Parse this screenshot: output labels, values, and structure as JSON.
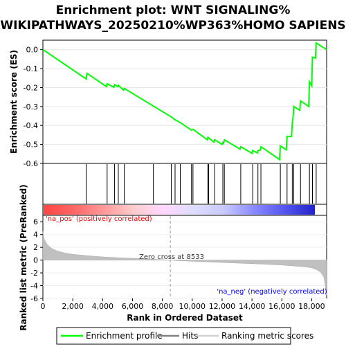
{
  "title_lines": [
    "Enrichment plot: WNT SIGNALING%",
    "WIKIPATHWAYS_20250210%WP363%HOMO SAPIENS"
  ],
  "legend": {
    "items": [
      {
        "label": "Enrichment profile",
        "color": "#00ff00"
      },
      {
        "label": "Hits",
        "color": "#808080"
      },
      {
        "label": "Ranking metric scores",
        "color": "#d0d0d0"
      }
    ]
  },
  "annotations": {
    "pos_label": "'na_pos' (positively correlated)",
    "neg_label": "'na_neg' (negatively correlated)",
    "zero_cross": "Zero cross at 8533"
  },
  "colors": {
    "profile": "#00ff00",
    "hits": "#000000",
    "metric_fill": "#c0c0c0",
    "pos_label": "#ff0000",
    "neg_label": "#0000ff"
  },
  "chart_data": [
    {
      "type": "line",
      "name": "enrichment-profile",
      "ylabel": "Enrichment score (ES)",
      "xlim": [
        0,
        19000
      ],
      "ylim": [
        -0.6,
        0.05
      ],
      "yticks": [
        0.0,
        -0.1,
        -0.2,
        -0.3,
        -0.4,
        -0.5,
        -0.6
      ],
      "ytick_labels": [
        "0.0",
        "-0.1",
        "-0.2",
        "-0.3",
        "-0.4",
        "-0.5",
        "-0.6"
      ],
      "grid": true,
      "x": [
        0,
        2900,
        2950,
        4250,
        4300,
        4750,
        4800,
        5000,
        5050,
        5400,
        5450,
        7400,
        8600,
        8850,
        9200,
        9950,
        10050,
        11000,
        11050,
        11450,
        11500,
        12000,
        12050,
        12100,
        12150,
        13200,
        13250,
        14000,
        14050,
        14350,
        14400,
        14550,
        14600,
        15850,
        15900,
        16300,
        16350,
        16650,
        16700,
        16750,
        16800,
        17200,
        17250,
        17800,
        17850,
        18000,
        18050,
        18250,
        18300,
        19000
      ],
      "y": [
        0.0,
        -0.155,
        -0.125,
        -0.195,
        -0.18,
        -0.198,
        -0.185,
        -0.195,
        -0.188,
        -0.213,
        -0.205,
        -0.298,
        -0.355,
        -0.37,
        -0.385,
        -0.425,
        -0.42,
        -0.475,
        -0.462,
        -0.488,
        -0.475,
        -0.5,
        -0.49,
        -0.495,
        -0.475,
        -0.525,
        -0.512,
        -0.547,
        -0.532,
        -0.545,
        -0.532,
        -0.53,
        -0.512,
        -0.58,
        -0.508,
        -0.528,
        -0.458,
        -0.458,
        -0.385,
        -0.36,
        -0.3,
        -0.32,
        -0.27,
        -0.3,
        -0.17,
        -0.19,
        -0.04,
        -0.045,
        0.035,
        0.0
      ]
    },
    {
      "type": "scatter",
      "name": "hits",
      "xlim": [
        0,
        19000
      ],
      "x": [
        2900,
        4300,
        4800,
        5050,
        5450,
        7400,
        8600,
        8850,
        9200,
        9950,
        10050,
        11050,
        11100,
        11500,
        12050,
        12150,
        13250,
        14050,
        14400,
        14600,
        15900,
        16350,
        16700,
        16800,
        17250,
        17850,
        18050,
        18300
      ]
    },
    {
      "type": "heatmap",
      "name": "rank-colorbar",
      "stops": [
        "#ff4444",
        "#ff6666",
        "#ff9999",
        "#ffcccc",
        "#ffd8ff",
        "#ddddff",
        "#c8c8ff",
        "#8888ff",
        "#5555ee",
        "#2222cc"
      ]
    },
    {
      "type": "area",
      "name": "ranked-metric",
      "xlabel": "Rank in Ordered Dataset",
      "ylabel": "Ranked list metric (PreRanked)",
      "xlim": [
        0,
        19000
      ],
      "ylim": [
        -6,
        7
      ],
      "xticks": [
        0,
        2000,
        4000,
        6000,
        8000,
        10000,
        12000,
        14000,
        16000,
        18000
      ],
      "xtick_labels": [
        "0",
        "2,000",
        "4,000",
        "6,000",
        "8,000",
        "10,000",
        "12,000",
        "14,000",
        "16,000",
        "18,000"
      ],
      "yticks": [
        6,
        4,
        2,
        0,
        -2,
        -4,
        -6
      ],
      "ytick_labels": [
        "6",
        "4",
        "2",
        "0",
        "-2",
        "-4",
        "-6"
      ],
      "zero_cross": 8533,
      "x": [
        0,
        100,
        300,
        600,
        1000,
        1500,
        2000,
        3000,
        4000,
        5000,
        6000,
        7000,
        8000,
        8533,
        9000,
        10000,
        11000,
        12000,
        13000,
        14000,
        15000,
        16000,
        17000,
        17500,
        18000,
        18300,
        18600,
        18800,
        18900,
        19000
      ],
      "y": [
        4.5,
        3.2,
        2.4,
        1.8,
        1.4,
        1.1,
        0.9,
        0.7,
        0.5,
        0.38,
        0.27,
        0.18,
        0.07,
        0.0,
        -0.08,
        -0.18,
        -0.28,
        -0.38,
        -0.47,
        -0.56,
        -0.66,
        -0.78,
        -0.95,
        -1.05,
        -1.2,
        -1.45,
        -1.9,
        -2.6,
        -3.8,
        -5.5
      ]
    }
  ]
}
